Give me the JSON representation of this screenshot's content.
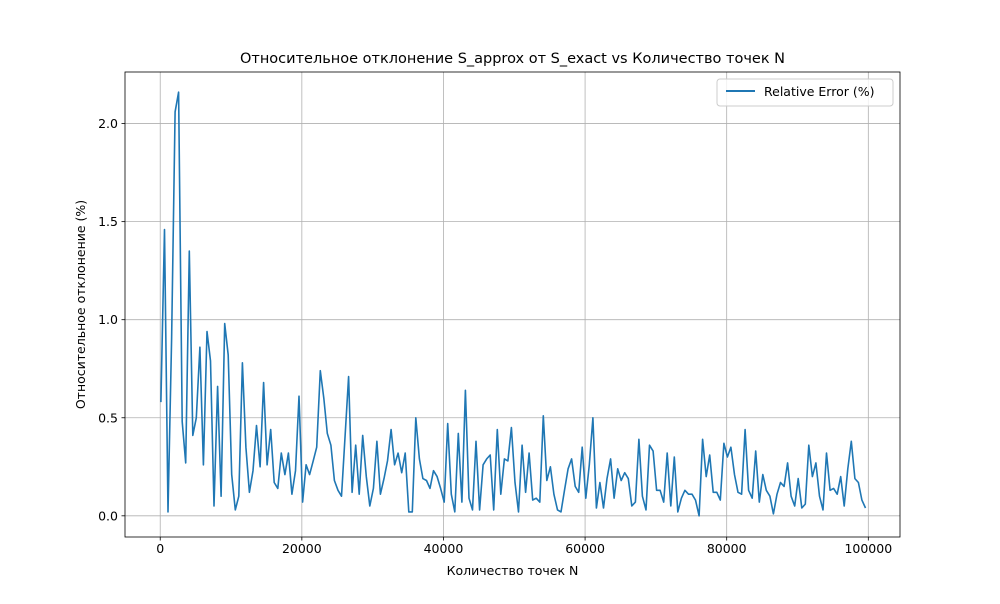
{
  "chart_data": {
    "type": "line",
    "title": "Относительное отклонение S_approx от S_exact vs Количество точек N",
    "xlabel": "Количество точек N",
    "ylabel": "Относительное отклонение (%)",
    "xlim": [
      -4975,
      104475
    ],
    "ylim": [
      -0.108,
      2.263
    ],
    "x_ticks": [
      0,
      20000,
      40000,
      60000,
      80000,
      100000
    ],
    "y_ticks": [
      0.0,
      0.5,
      1.0,
      1.5,
      2.0
    ],
    "x_tick_labels": [
      "0",
      "20000",
      "40000",
      "60000",
      "80000",
      "100000"
    ],
    "y_tick_labels": [
      "0.0",
      "0.5",
      "1.0",
      "1.5",
      "2.0"
    ],
    "grid": true,
    "legend_position": "top-right",
    "series": [
      {
        "name": "Relative Error (%)",
        "color": "#1f77b4",
        "x": [
          100,
          600,
          1100,
          1600,
          2100,
          2600,
          3100,
          3600,
          4100,
          4600,
          5100,
          5600,
          6100,
          6600,
          7100,
          7600,
          8100,
          8600,
          9100,
          9600,
          10100,
          10600,
          11100,
          11600,
          12100,
          12600,
          13100,
          13600,
          14100,
          14600,
          15100,
          15600,
          16100,
          16600,
          17100,
          17600,
          18100,
          18600,
          19100,
          19600,
          20100,
          20600,
          21100,
          21600,
          22100,
          22600,
          23100,
          23600,
          24100,
          24600,
          25100,
          25600,
          26100,
          26600,
          27100,
          27600,
          28100,
          28600,
          29100,
          29600,
          30100,
          30600,
          31100,
          31600,
          32100,
          32600,
          33100,
          33600,
          34100,
          34600,
          35100,
          35600,
          36100,
          36600,
          37100,
          37600,
          38100,
          38600,
          39100,
          39600,
          40100,
          40600,
          41100,
          41600,
          42100,
          42600,
          43100,
          43600,
          44100,
          44600,
          45100,
          45600,
          46100,
          46600,
          47100,
          47600,
          48100,
          48600,
          49100,
          49600,
          50100,
          50600,
          51100,
          51600,
          52100,
          52600,
          53100,
          53600,
          54100,
          54600,
          55100,
          55600,
          56100,
          56600,
          57100,
          57600,
          58100,
          58600,
          59100,
          59600,
          60100,
          60600,
          61100,
          61600,
          62100,
          62600,
          63100,
          63600,
          64100,
          64600,
          65100,
          65600,
          66100,
          66600,
          67100,
          67600,
          68100,
          68600,
          69100,
          69600,
          70100,
          70600,
          71100,
          71600,
          72100,
          72600,
          73100,
          73600,
          74100,
          74600,
          75100,
          75600,
          76100,
          76600,
          77100,
          77600,
          78100,
          78600,
          79100,
          79600,
          80100,
          80600,
          81100,
          81600,
          82100,
          82600,
          83100,
          83600,
          84100,
          84600,
          85100,
          85600,
          86100,
          86600,
          87100,
          87600,
          88100,
          88600,
          89100,
          89600,
          90100,
          90600,
          91100,
          91600,
          92100,
          92600,
          93100,
          93600,
          94100,
          94600,
          95100,
          95600,
          96100,
          96600,
          97100,
          97600,
          98100,
          98600,
          99100,
          99600
        ],
        "values": [
          0.58,
          1.46,
          0.02,
          0.9,
          2.06,
          2.16,
          0.48,
          0.27,
          1.35,
          0.41,
          0.5,
          0.86,
          0.26,
          0.94,
          0.79,
          0.05,
          0.66,
          0.1,
          0.98,
          0.82,
          0.21,
          0.03,
          0.1,
          0.78,
          0.35,
          0.12,
          0.23,
          0.46,
          0.25,
          0.68,
          0.26,
          0.44,
          0.17,
          0.14,
          0.32,
          0.21,
          0.32,
          0.11,
          0.23,
          0.61,
          0.07,
          0.26,
          0.21,
          0.28,
          0.35,
          0.74,
          0.6,
          0.42,
          0.36,
          0.18,
          0.13,
          0.1,
          0.4,
          0.71,
          0.12,
          0.36,
          0.11,
          0.41,
          0.2,
          0.05,
          0.14,
          0.38,
          0.11,
          0.19,
          0.28,
          0.44,
          0.26,
          0.32,
          0.22,
          0.32,
          0.02,
          0.02,
          0.5,
          0.29,
          0.19,
          0.18,
          0.14,
          0.23,
          0.2,
          0.14,
          0.07,
          0.47,
          0.11,
          0.02,
          0.42,
          0.07,
          0.64,
          0.09,
          0.03,
          0.38,
          0.03,
          0.26,
          0.29,
          0.31,
          0.03,
          0.44,
          0.11,
          0.29,
          0.28,
          0.45,
          0.17,
          0.02,
          0.36,
          0.12,
          0.32,
          0.08,
          0.09,
          0.07,
          0.51,
          0.18,
          0.25,
          0.11,
          0.03,
          0.02,
          0.13,
          0.24,
          0.29,
          0.15,
          0.12,
          0.35,
          0.09,
          0.26,
          0.5,
          0.04,
          0.17,
          0.04,
          0.19,
          0.29,
          0.09,
          0.24,
          0.18,
          0.22,
          0.19,
          0.05,
          0.07,
          0.39,
          0.1,
          0.03,
          0.36,
          0.33,
          0.13,
          0.13,
          0.07,
          0.32,
          0.05,
          0.3,
          0.02,
          0.09,
          0.13,
          0.11,
          0.11,
          0.08,
          0.0,
          0.39,
          0.2,
          0.31,
          0.12,
          0.12,
          0.08,
          0.37,
          0.3,
          0.35,
          0.21,
          0.12,
          0.11,
          0.44,
          0.13,
          0.09,
          0.33,
          0.07,
          0.21,
          0.13,
          0.1,
          0.01,
          0.11,
          0.17,
          0.15,
          0.27,
          0.1,
          0.05,
          0.19,
          0.04,
          0.06,
          0.36,
          0.2,
          0.27,
          0.1,
          0.03,
          0.32,
          0.13,
          0.14,
          0.11,
          0.2,
          0.05,
          0.24,
          0.38,
          0.19,
          0.17,
          0.08,
          0.04
        ]
      }
    ]
  }
}
